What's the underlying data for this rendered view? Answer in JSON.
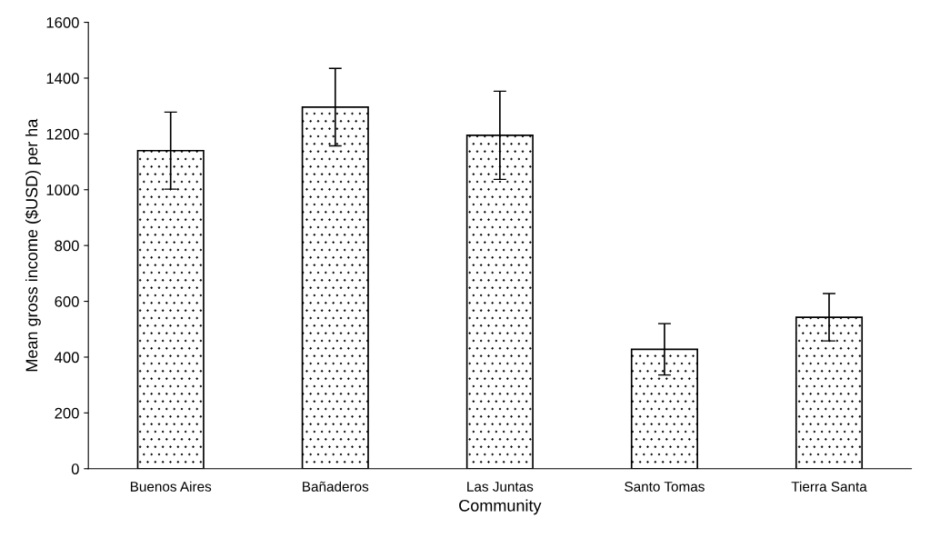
{
  "chart_data": {
    "type": "bar",
    "xlabel": "Community",
    "ylabel": "Mean gross income ($USD) per ha",
    "categories": [
      "Buenos Aires",
      "Bañaderos",
      "Las Juntas",
      "Santo Tomas",
      "Tierra Santa"
    ],
    "values": [
      1140,
      1296,
      1195,
      428,
      543
    ],
    "errors": [
      138,
      139,
      158,
      92,
      85
    ],
    "color": "#000000",
    "ylim": [
      0,
      1600
    ],
    "yticks": [
      0,
      200,
      400,
      600,
      800,
      1000,
      1200,
      1400,
      1600
    ],
    "grid": false
  }
}
